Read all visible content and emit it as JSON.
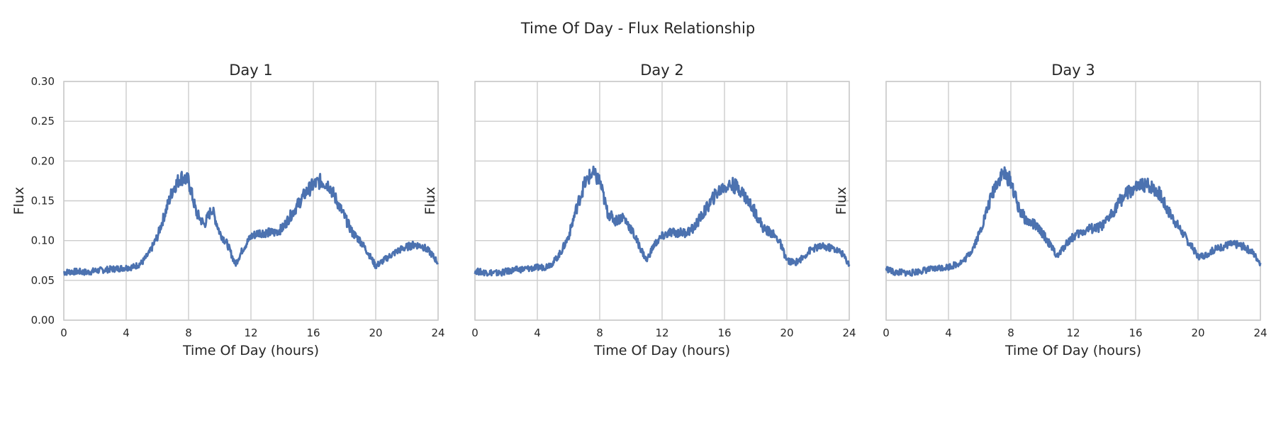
{
  "figure": {
    "title": "Time Of Day - Flux Relationship"
  },
  "style": {
    "line_color": "#4c72b0",
    "grid_color": "#cccccc",
    "text_color": "#262626"
  },
  "chart_data": [
    {
      "type": "line",
      "title": "Day 1",
      "xlabel": "Time Of Day (hours)",
      "ylabel": "Flux",
      "xlim": [
        0,
        24
      ],
      "ylim": [
        0,
        0.3
      ],
      "xticks": [
        "0",
        "4",
        "8",
        "12",
        "16",
        "20",
        "24"
      ],
      "yticks": [
        "0.00",
        "0.05",
        "0.10",
        "0.15",
        "0.20",
        "0.25",
        "0.30"
      ],
      "grid": true,
      "series": [
        {
          "x": [
            0,
            0.5,
            1,
            1.5,
            2,
            2.5,
            3,
            3.5,
            4,
            4.5,
            5,
            5.5,
            6,
            6.5,
            7,
            7.5,
            8,
            8.5,
            9,
            9.5,
            10,
            10.5,
            11,
            11.5,
            12,
            12.5,
            13,
            13.5,
            14,
            14.5,
            15,
            15.5,
            16,
            16.5,
            17,
            17.5,
            18,
            18.5,
            19,
            19.5,
            20,
            20.5,
            21,
            21.5,
            22,
            22.5,
            23,
            23.5,
            24
          ],
          "y": [
            0.06,
            0.061,
            0.061,
            0.06,
            0.062,
            0.063,
            0.064,
            0.065,
            0.066,
            0.067,
            0.072,
            0.085,
            0.105,
            0.135,
            0.165,
            0.18,
            0.175,
            0.135,
            0.12,
            0.14,
            0.11,
            0.095,
            0.07,
            0.09,
            0.105,
            0.11,
            0.11,
            0.11,
            0.115,
            0.13,
            0.145,
            0.16,
            0.17,
            0.175,
            0.17,
            0.15,
            0.13,
            0.11,
            0.1,
            0.085,
            0.068,
            0.075,
            0.082,
            0.088,
            0.092,
            0.095,
            0.093,
            0.085,
            0.072
          ]
        }
      ]
    },
    {
      "type": "line",
      "title": "Day 2",
      "xlabel": "Time Of Day (hours)",
      "ylabel": "Flux",
      "xlim": [
        0,
        24
      ],
      "ylim": [
        0,
        0.3
      ],
      "xticks": [
        "0",
        "4",
        "8",
        "12",
        "16",
        "20",
        "24"
      ],
      "yticks": [],
      "grid": true,
      "series": [
        {
          "x": [
            0,
            0.5,
            1,
            1.5,
            2,
            2.5,
            3,
            3.5,
            4,
            4.5,
            5,
            5.5,
            6,
            6.5,
            7,
            7.5,
            8,
            8.5,
            9,
            9.5,
            10,
            10.5,
            11,
            11.5,
            12,
            12.5,
            13,
            13.5,
            14,
            14.5,
            15,
            15.5,
            16,
            16.5,
            17,
            17.5,
            18,
            18.5,
            19,
            19.5,
            20,
            20.5,
            21,
            21.5,
            22,
            22.5,
            23,
            23.5,
            24
          ],
          "y": [
            0.062,
            0.06,
            0.06,
            0.059,
            0.061,
            0.063,
            0.064,
            0.065,
            0.066,
            0.067,
            0.072,
            0.085,
            0.105,
            0.14,
            0.17,
            0.185,
            0.175,
            0.135,
            0.125,
            0.13,
            0.115,
            0.095,
            0.075,
            0.095,
            0.105,
            0.11,
            0.11,
            0.11,
            0.115,
            0.13,
            0.145,
            0.16,
            0.168,
            0.17,
            0.165,
            0.15,
            0.135,
            0.115,
            0.11,
            0.1,
            0.075,
            0.072,
            0.078,
            0.088,
            0.092,
            0.092,
            0.09,
            0.085,
            0.07
          ]
        }
      ]
    },
    {
      "type": "line",
      "title": "Day 3",
      "xlabel": "Time Of Day (hours)",
      "ylabel": "Flux",
      "xlim": [
        0,
        24
      ],
      "ylim": [
        0,
        0.3
      ],
      "xticks": [
        "0",
        "4",
        "8",
        "12",
        "16",
        "20",
        "24"
      ],
      "yticks": [],
      "grid": true,
      "series": [
        {
          "x": [
            0,
            0.5,
            1,
            1.5,
            2,
            2.5,
            3,
            3.5,
            4,
            4.5,
            5,
            5.5,
            6,
            6.5,
            7,
            7.5,
            8,
            8.5,
            9,
            9.5,
            10,
            10.5,
            11,
            11.5,
            12,
            12.5,
            13,
            13.5,
            14,
            14.5,
            15,
            15.5,
            16,
            16.5,
            17,
            17.5,
            18,
            18.5,
            19,
            19.5,
            20,
            20.5,
            21,
            21.5,
            22,
            22.5,
            23,
            23.5,
            24
          ],
          "y": [
            0.065,
            0.06,
            0.06,
            0.059,
            0.061,
            0.063,
            0.064,
            0.066,
            0.067,
            0.07,
            0.075,
            0.088,
            0.11,
            0.14,
            0.17,
            0.185,
            0.175,
            0.14,
            0.125,
            0.12,
            0.11,
            0.095,
            0.08,
            0.095,
            0.105,
            0.11,
            0.115,
            0.115,
            0.12,
            0.135,
            0.15,
            0.16,
            0.165,
            0.17,
            0.168,
            0.16,
            0.14,
            0.125,
            0.11,
            0.095,
            0.08,
            0.082,
            0.088,
            0.092,
            0.095,
            0.095,
            0.092,
            0.085,
            0.072
          ]
        }
      ]
    }
  ]
}
